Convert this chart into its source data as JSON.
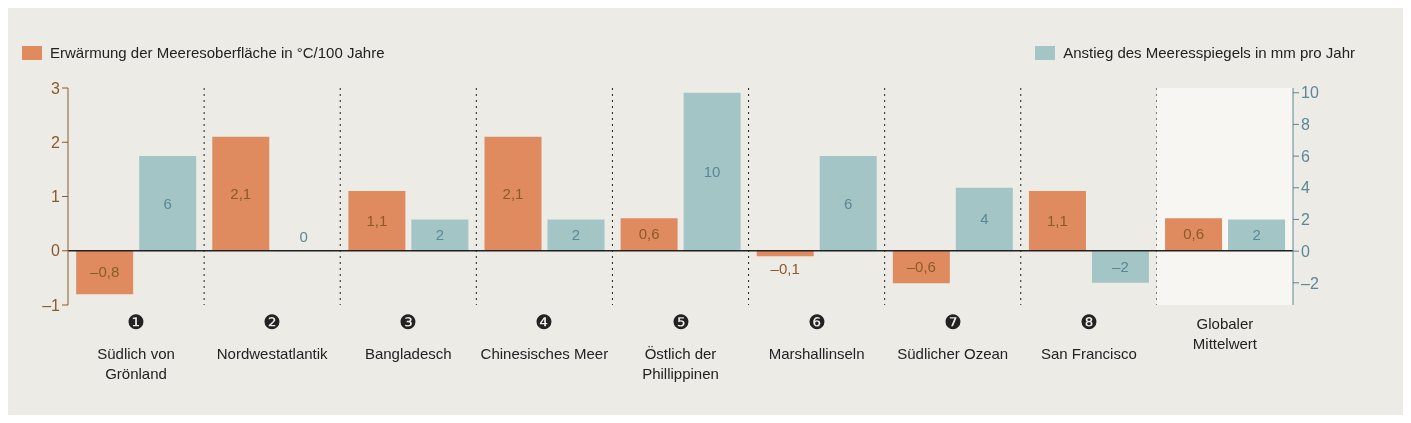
{
  "chart_data": {
    "type": "bar",
    "categories": [
      "❶\nSüdlich von\nGrönland",
      "❷\nNordwestatlantik",
      "❸\nBangladesch",
      "❹\nChinesisches Meer",
      "❺\nÖstlich der\nPhillippinen",
      "❻\nMarshallinseln",
      "❼\nSüdlicher Ozean",
      "❽\nSan Francisco",
      "Globaler\nMittelwert"
    ],
    "series": [
      {
        "name": "Erwärmung der Meeresoberfläche in °C/100 Jahre",
        "color": "#e08b5f",
        "values": [
          -0.8,
          2.1,
          1.1,
          2.1,
          0.6,
          -0.1,
          -0.6,
          1.1,
          0.6
        ],
        "value_labels": [
          "–0,8",
          "2,1",
          "1,1",
          "2,1",
          "0,6",
          "–0,1",
          "–0,6",
          "1,1",
          "0,6"
        ]
      },
      {
        "name": "Anstieg des Meeresspiegels in mm pro Jahr",
        "color": "#a3c5c5",
        "axis": "y2",
        "values": [
          6,
          0,
          2,
          2,
          10,
          6,
          4,
          -2,
          2
        ],
        "value_labels": [
          "6",
          "0",
          "2",
          "2",
          "10",
          "6",
          "4",
          "–2",
          "2"
        ]
      }
    ],
    "ylim": [
      -1,
      3
    ],
    "yticks": [
      {
        "value": -1,
        "label": "–1"
      },
      0,
      1,
      2,
      3
    ],
    "y2lim": [
      -3.4,
      10.3
    ],
    "y2ticks": [
      {
        "value": -2,
        "label": "–2"
      },
      0,
      2,
      4,
      6,
      8,
      10
    ],
    "bands": [
      {
        "axis": "x",
        "from": "Globaler\nMittelwert",
        "to": "Globaler\nMittelwert",
        "color": "#f7f6f3"
      }
    ],
    "grid": "x",
    "legend": "top"
  }
}
